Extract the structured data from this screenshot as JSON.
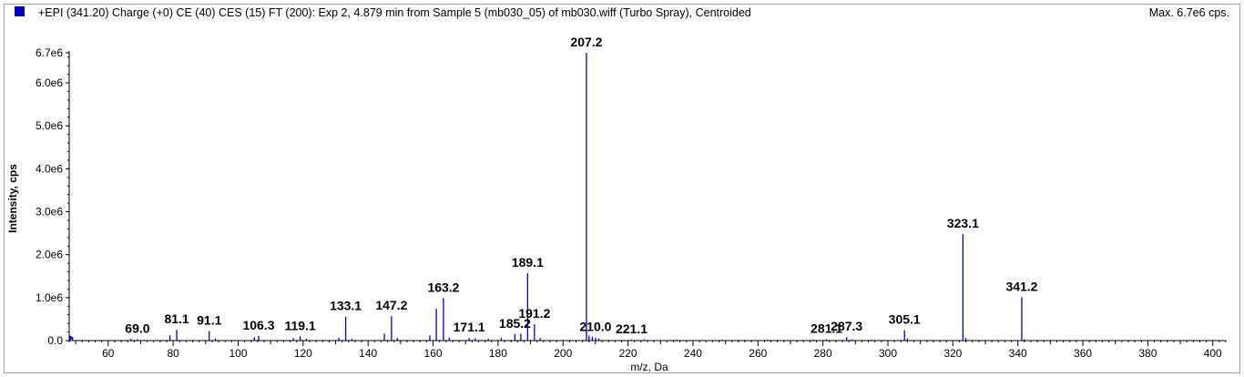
{
  "header": {
    "title": "+EPI (341.20) Charge (+0) CE (40) CES (15) FT (200): Exp 2, 4.879 min from Sample 5 (mb030_05) of mb030.wiff (Turbo Spray), Centroided",
    "max_label": "Max. 6.7e6 cps.",
    "series_color": "#0000c8"
  },
  "chart_data": {
    "type": "bar",
    "title": "",
    "xlabel": "m/z, Da",
    "ylabel": "Intensity, cps",
    "xlim": [
      48,
      404
    ],
    "ylim": [
      0,
      6700000
    ],
    "x_ticks": [
      60,
      80,
      100,
      120,
      140,
      160,
      180,
      200,
      220,
      240,
      260,
      280,
      300,
      320,
      340,
      360,
      380,
      400
    ],
    "x_tick_labels": [
      "60",
      "80",
      "100",
      "120",
      "140",
      "160",
      "180",
      "200",
      "220",
      "240",
      "260",
      "280",
      "300",
      "320",
      "340",
      "360",
      "380",
      "400"
    ],
    "y_ticks": [
      0,
      1000000,
      2000000,
      3000000,
      4000000,
      5000000,
      6000000,
      6700000
    ],
    "y_tick_labels": [
      "0.0",
      "1.0e6",
      "2.0e6",
      "3.0e6",
      "4.0e6",
      "5.0e6",
      "6.0e6",
      "6.7e6"
    ],
    "peaks": [
      {
        "mz": 69.0,
        "intensity": 30000,
        "label": "69.0"
      },
      {
        "mz": 81.1,
        "intensity": 250000,
        "label": "81.1"
      },
      {
        "mz": 91.1,
        "intensity": 220000,
        "label": "91.1"
      },
      {
        "mz": 106.3,
        "intensity": 110000,
        "label": "106.3"
      },
      {
        "mz": 119.1,
        "intensity": 100000,
        "label": "119.1"
      },
      {
        "mz": 133.1,
        "intensity": 560000,
        "label": "133.1"
      },
      {
        "mz": 147.2,
        "intensity": 570000,
        "label": "147.2"
      },
      {
        "mz": 163.2,
        "intensity": 990000,
        "label": "163.2"
      },
      {
        "mz": 171.1,
        "intensity": 60000,
        "label": "171.1"
      },
      {
        "mz": 185.2,
        "intensity": 150000,
        "label": "185.2"
      },
      {
        "mz": 189.1,
        "intensity": 1570000,
        "label": "189.1"
      },
      {
        "mz": 191.2,
        "intensity": 380000,
        "label": "191.2"
      },
      {
        "mz": 207.2,
        "intensity": 6700000,
        "label": "207.2"
      },
      {
        "mz": 210.0,
        "intensity": 70000,
        "label": "210.0"
      },
      {
        "mz": 221.1,
        "intensity": 20000,
        "label": "221.1"
      },
      {
        "mz": 281.1,
        "intensity": 30000,
        "label": "281.1"
      },
      {
        "mz": 287.3,
        "intensity": 80000,
        "label": "287.3"
      },
      {
        "mz": 305.1,
        "intensity": 240000,
        "label": "305.1"
      },
      {
        "mz": 323.1,
        "intensity": 2480000,
        "label": "323.1"
      },
      {
        "mz": 341.2,
        "intensity": 1010000,
        "label": "341.2"
      },
      {
        "mz": 49.0,
        "intensity": 60000,
        "label": ""
      },
      {
        "mz": 67.0,
        "intensity": 40000,
        "label": ""
      },
      {
        "mz": 79.0,
        "intensity": 120000,
        "label": ""
      },
      {
        "mz": 93.0,
        "intensity": 50000,
        "label": ""
      },
      {
        "mz": 105.0,
        "intensity": 80000,
        "label": ""
      },
      {
        "mz": 117.0,
        "intensity": 60000,
        "label": ""
      },
      {
        "mz": 121.0,
        "intensity": 40000,
        "label": ""
      },
      {
        "mz": 131.0,
        "intensity": 70000,
        "label": ""
      },
      {
        "mz": 135.0,
        "intensity": 40000,
        "label": ""
      },
      {
        "mz": 145.0,
        "intensity": 160000,
        "label": ""
      },
      {
        "mz": 149.0,
        "intensity": 60000,
        "label": ""
      },
      {
        "mz": 159.0,
        "intensity": 120000,
        "label": ""
      },
      {
        "mz": 161.0,
        "intensity": 740000,
        "label": ""
      },
      {
        "mz": 165.0,
        "intensity": 70000,
        "label": ""
      },
      {
        "mz": 173.0,
        "intensity": 50000,
        "label": ""
      },
      {
        "mz": 177.0,
        "intensity": 40000,
        "label": ""
      },
      {
        "mz": 181.0,
        "intensity": 60000,
        "label": ""
      },
      {
        "mz": 187.0,
        "intensity": 160000,
        "label": ""
      },
      {
        "mz": 193.0,
        "intensity": 60000,
        "label": ""
      },
      {
        "mz": 208.0,
        "intensity": 120000,
        "label": ""
      },
      {
        "mz": 209.0,
        "intensity": 90000,
        "label": ""
      },
      {
        "mz": 211.0,
        "intensity": 50000,
        "label": ""
      },
      {
        "mz": 225.0,
        "intensity": 30000,
        "label": ""
      },
      {
        "mz": 235.0,
        "intensity": 20000,
        "label": ""
      },
      {
        "mz": 249.0,
        "intensity": 20000,
        "label": ""
      },
      {
        "mz": 263.0,
        "intensity": 20000,
        "label": ""
      },
      {
        "mz": 277.0,
        "intensity": 20000,
        "label": ""
      },
      {
        "mz": 289.0,
        "intensity": 30000,
        "label": ""
      },
      {
        "mz": 295.0,
        "intensity": 20000,
        "label": ""
      },
      {
        "mz": 306.0,
        "intensity": 50000,
        "label": ""
      },
      {
        "mz": 324.0,
        "intensity": 60000,
        "label": ""
      },
      {
        "mz": 342.0,
        "intensity": 30000,
        "label": ""
      }
    ]
  }
}
